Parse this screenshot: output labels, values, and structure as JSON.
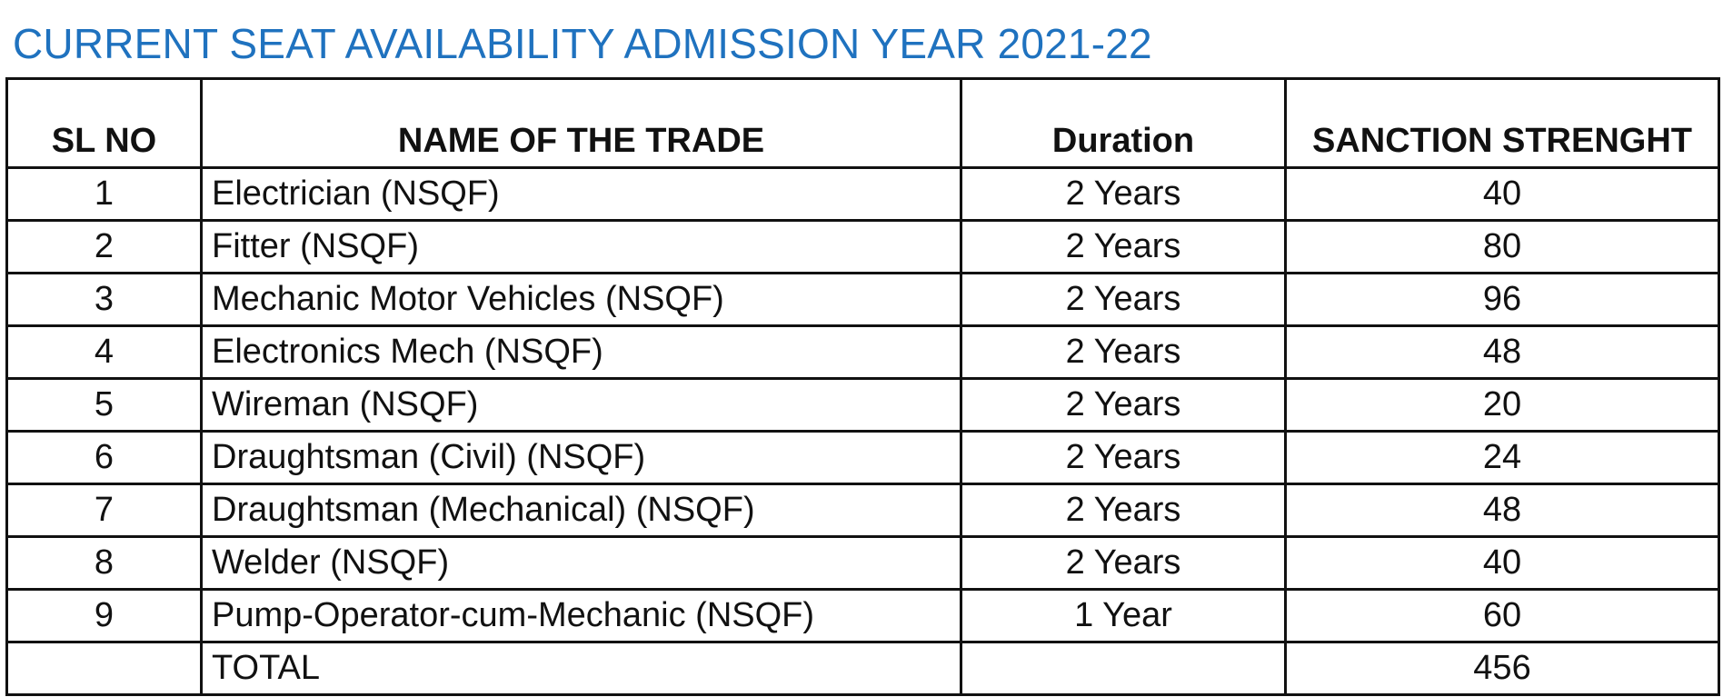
{
  "title": "CURRENT SEAT AVAILABILITY ADMISSION YEAR 2021-22",
  "table": {
    "headers": {
      "sl_no": "SL NO",
      "trade": "NAME OF THE TRADE",
      "duration": "Duration",
      "strength": "SANCTION STRENGHT"
    },
    "rows": [
      {
        "sl": "1",
        "trade": "Electrician (NSQF)",
        "duration": "2 Years",
        "strength": "40"
      },
      {
        "sl": "2",
        "trade": "Fitter (NSQF)",
        "duration": "2 Years",
        "strength": "80"
      },
      {
        "sl": "3",
        "trade": "Mechanic Motor Vehicles (NSQF)",
        "duration": "2 Years",
        "strength": "96"
      },
      {
        "sl": "4",
        "trade": "Electronics Mech (NSQF)",
        "duration": "2 Years",
        "strength": "48"
      },
      {
        "sl": "5",
        "trade": "Wireman (NSQF)",
        "duration": "2 Years",
        "strength": "20"
      },
      {
        "sl": "6",
        "trade": "Draughtsman (Civil) (NSQF)",
        "duration": "2 Years",
        "strength": "24"
      },
      {
        "sl": "7",
        "trade": "Draughtsman (Mechanical) (NSQF)",
        "duration": "2 Years",
        "strength": "48"
      },
      {
        "sl": "8",
        "trade": "Welder (NSQF)",
        "duration": "2 Years",
        "strength": "40"
      },
      {
        "sl": "9",
        "trade": "Pump-Operator-cum-Mechanic (NSQF)",
        "duration": "1 Year",
        "strength": "60"
      }
    ],
    "total": {
      "label": "TOTAL",
      "strength": "456"
    }
  },
  "colors": {
    "title": "#1f72bf",
    "text": "#111111",
    "border": "#111111"
  }
}
